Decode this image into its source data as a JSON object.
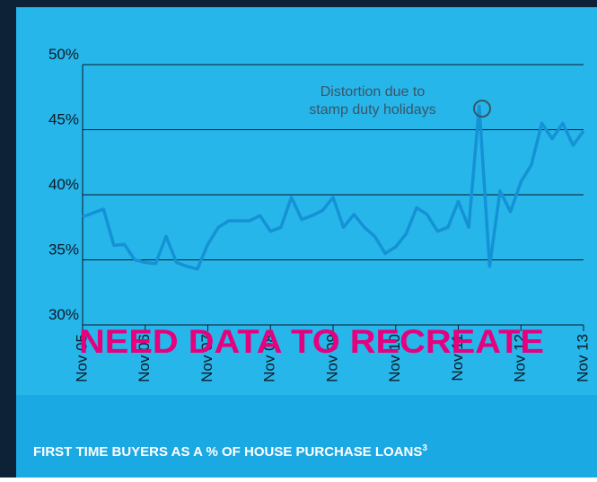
{
  "chart_data": {
    "type": "line",
    "categories": [
      "Nov 05",
      null,
      null,
      null,
      null,
      null,
      "Nov 06",
      null,
      null,
      null,
      null,
      null,
      "Nov 07",
      null,
      null,
      null,
      null,
      null,
      "Nov 08",
      null,
      null,
      null,
      null,
      null,
      "Nov 09",
      null,
      null,
      null,
      null,
      null,
      "Nov 10",
      null,
      null,
      null,
      null,
      null,
      "Nov 11",
      null,
      null,
      null,
      null,
      null,
      "Nov 12",
      null,
      null,
      null,
      null,
      null,
      "Nov 13"
    ],
    "values": [
      38.3,
      38.6,
      38.9,
      36.1,
      36.2,
      35.0,
      34.8,
      34.7,
      36.8,
      34.8,
      34.5,
      34.3,
      36.2,
      37.5,
      38.0,
      38.0,
      38.0,
      38.4,
      37.2,
      37.5,
      39.8,
      38.1,
      38.4,
      38.8,
      39.8,
      37.5,
      38.5,
      37.5,
      36.8,
      35.5,
      36.0,
      37.0,
      39.0,
      38.5,
      37.2,
      37.5,
      39.5,
      37.5,
      46.8,
      34.5,
      40.3,
      38.7,
      41.0,
      42.3,
      45.5,
      44.3,
      45.5,
      43.8,
      44.9
    ],
    "color": "#1592d6",
    "ylim": [
      30,
      50
    ],
    "yticks": [
      {
        "value": 30,
        "label": "30%"
      },
      {
        "value": 35,
        "label": "35%"
      },
      {
        "value": 40,
        "label": "40%"
      },
      {
        "value": 45,
        "label": "45%"
      },
      {
        "value": 50,
        "label": "50%"
      }
    ],
    "grid": true,
    "annotation": [
      "Distortion due to",
      "stamp duty holidays"
    ],
    "overlay": "NEED DATA TO RECREATE",
    "footer": "FIRST TIME BUYERS AS A % OF HOUSE PURCHASE LOANS",
    "footer_note": "3"
  }
}
